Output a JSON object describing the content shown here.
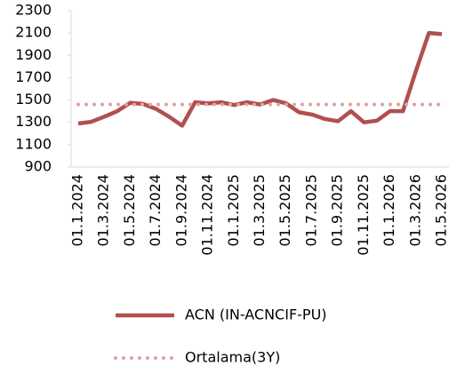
{
  "chart_data": {
    "type": "line",
    "categories": [
      "01.1.2024",
      null,
      "01.3.2024",
      null,
      "01.5.2024",
      null,
      "01.7.2024",
      null,
      "01.9.2024",
      null,
      "01.11.2024",
      null,
      "01.1.2025",
      null,
      "01.3.2025",
      null,
      "01.5.2025",
      null,
      "01.7.2025",
      null,
      "01.9.2025",
      null,
      "01.11.2025",
      null,
      "01.1.2026",
      null,
      "01.3.2026",
      null,
      "01.5.2026"
    ],
    "series": [
      {
        "name": "ACN (IN-ACNCIF-PU)",
        "color": "#b0504f",
        "style": "solid",
        "values": [
          1290,
          1305,
          1350,
          1400,
          1475,
          1465,
          1420,
          1350,
          1270,
          1480,
          1470,
          1480,
          1455,
          1480,
          1460,
          1500,
          1470,
          1390,
          1370,
          1330,
          1310,
          1400,
          1300,
          1315,
          1400,
          1400,
          1760,
          2100,
          2090
        ]
      },
      {
        "name": "Ortalama(3Y)",
        "color": "#e3a3a2",
        "style": "dotted",
        "values": [
          1460,
          1460,
          1460,
          1460,
          1460,
          1460,
          1460,
          1460,
          1460,
          1460,
          1460,
          1460,
          1460,
          1460,
          1460,
          1460,
          1460,
          1460,
          1460,
          1460,
          1460,
          1460,
          1460,
          1460,
          1460,
          1460,
          1460,
          1460,
          1460
        ]
      }
    ],
    "ylim": [
      900,
      2300
    ],
    "yticks": [
      900,
      1100,
      1300,
      1500,
      1700,
      1900,
      2100,
      2300
    ],
    "legend": "bottom"
  }
}
